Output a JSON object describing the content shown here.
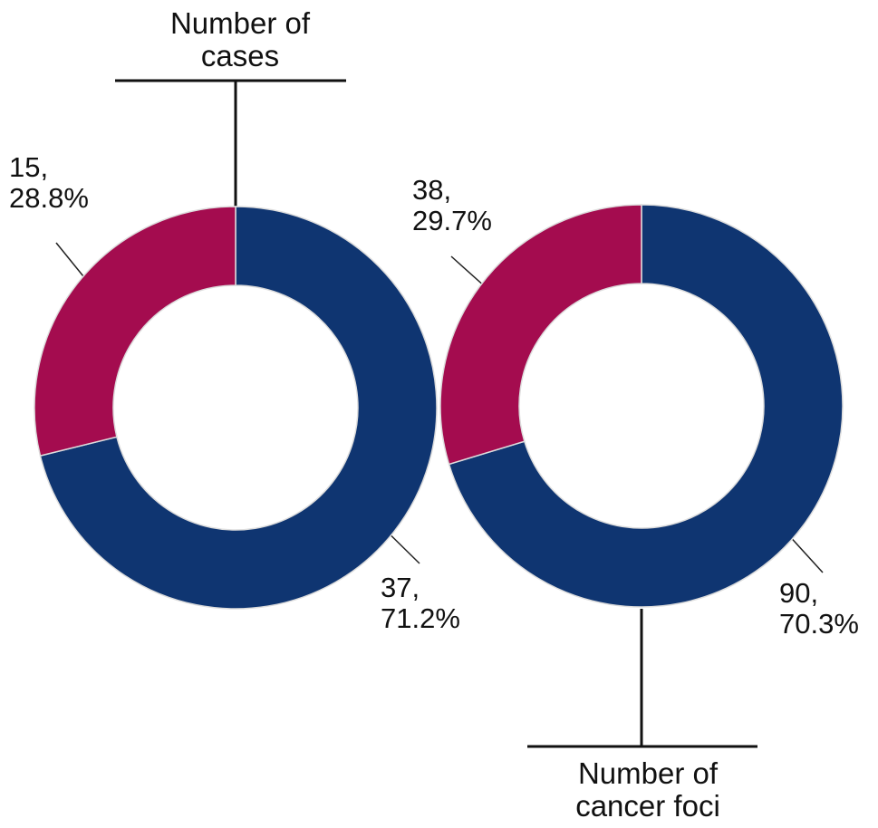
{
  "chart_data": [
    {
      "type": "donut",
      "title": "Number of\ncases",
      "categories": [
        null,
        null
      ],
      "values": [
        37,
        15
      ],
      "value_labels": [
        "37,\n71.2%",
        "15,\n28.8%"
      ],
      "colors": [
        "#0f3571",
        "#a40c4f"
      ]
    },
    {
      "type": "donut",
      "title": "Number of\ncancer foci",
      "categories": [
        null,
        null
      ],
      "values": [
        90,
        38
      ],
      "value_labels": [
        "90,\n70.3%",
        "38,\n29.7%"
      ],
      "colors": [
        "#0f3571",
        "#a40c4f"
      ]
    }
  ]
}
